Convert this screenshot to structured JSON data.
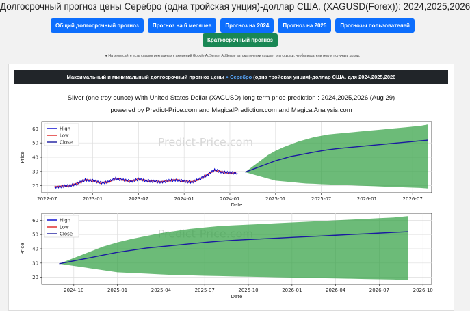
{
  "page": {
    "title": "Долгосрочный прогноз цены Серебро (одна тройская унция)-доллар США. (XAGUSD(Forex)): 2024,2025,2026"
  },
  "nav": {
    "buttons": [
      "Общий долгосрочный прогноз",
      "Прогноз на 6 месяцев",
      "Прогноз на 2024",
      "Прогноз на 2025",
      "Прогнозы пользователей"
    ],
    "short_term": "Краткосрочный прогноз"
  },
  "notice": "На этом сайте есть ссылки рекламных к амерений Google AdSense. AdSense автоматически создает эти ссылки, чтобы издатели могли получать доход.",
  "card": {
    "header_before": "Максимальный и минимальный долгосрочный прогноз цены",
    "header_link": "Серебро",
    "header_after": "(одна тройская унция)-доллар США. для 2024,2025,2026",
    "chart_title": "Silver (one troy ounce) With United States Dollar (XAGUSD) long term price prediction : 2024,2025,2026 (Aug 29)",
    "chart_subtitle": "powered by Predict-Price.com and MagicalPrediction.com and MagicalAnalysis.com"
  },
  "colors": {
    "high": "#0000cc",
    "low": "#dd2222",
    "close": "#1a1aa0",
    "band": "#2e9e3e",
    "primary": "#0d6efd",
    "success": "#198754"
  },
  "chart_data": [
    {
      "type": "line",
      "xlabel": "Date",
      "ylabel": "Price",
      "ylim": [
        15,
        65
      ],
      "yticks": [
        "20",
        "30",
        "40",
        "50",
        "60"
      ],
      "xticks": [
        "2022-07",
        "2023-01",
        "2023-07",
        "2024-01",
        "2024-07",
        "2025-01",
        "2025-07",
        "2026-01",
        "2026-07"
      ],
      "legend": [
        "High",
        "Low",
        "Close"
      ],
      "watermark": "Predict-Price.com",
      "grid": true,
      "history": {
        "dates": [
          "2022-08",
          "2022-09",
          "2022-10",
          "2022-11",
          "2022-12",
          "2023-01",
          "2023-02",
          "2023-03",
          "2023-04",
          "2023-05",
          "2023-06",
          "2023-07",
          "2023-08",
          "2023-09",
          "2023-10",
          "2023-11",
          "2023-12",
          "2024-01",
          "2024-02",
          "2024-03",
          "2024-04",
          "2024-05",
          "2024-06",
          "2024-07",
          "2024-08"
        ],
        "close": [
          19,
          19.5,
          20,
          21.5,
          24,
          23.5,
          22,
          22.5,
          25,
          24,
          23,
          24.5,
          23.5,
          23,
          22.5,
          23.5,
          24,
          23,
          22.5,
          24.5,
          27.5,
          31,
          29.5,
          29,
          29
        ]
      },
      "forecast": {
        "dates": [
          "2024-09",
          "2024-10",
          "2024-11",
          "2024-12",
          "2025-01",
          "2025-02",
          "2025-03",
          "2025-04",
          "2025-05",
          "2025-06",
          "2025-07",
          "2025-08",
          "2025-09",
          "2025-10",
          "2025-11",
          "2025-12",
          "2026-01",
          "2026-02",
          "2026-03",
          "2026-04",
          "2026-05",
          "2026-06",
          "2026-07",
          "2026-08",
          "2026-09"
        ],
        "close": [
          29.5,
          31.5,
          33.5,
          35.5,
          37.5,
          39,
          40.5,
          41.5,
          42.5,
          43.5,
          44.5,
          45.3,
          46,
          46.5,
          47,
          47.5,
          48,
          48.5,
          49,
          49.5,
          50,
          50.5,
          51,
          51.5,
          52
        ],
        "high": [
          29.5,
          33.5,
          37.5,
          41.5,
          44.5,
          47,
          49,
          51,
          52.5,
          54,
          55,
          56,
          56.5,
          57,
          57.5,
          58,
          58.5,
          59,
          59.5,
          60,
          60.5,
          61,
          61.5,
          62,
          63
        ],
        "low": [
          29.5,
          28,
          26.5,
          25,
          23.5,
          23,
          22.5,
          22,
          21.5,
          21.3,
          21,
          20.8,
          20.6,
          20.4,
          20.2,
          20,
          19.8,
          19.6,
          19.4,
          19.2,
          19,
          18.8,
          18.6,
          18.4,
          18
        ]
      }
    },
    {
      "type": "line",
      "xlabel": "Date",
      "ylabel": "Price",
      "ylim": [
        15,
        65
      ],
      "yticks": [
        "20",
        "30",
        "40",
        "50",
        "60"
      ],
      "xticks": [
        "2024-10",
        "2025-01",
        "2025-04",
        "2025-07",
        "2025-10",
        "2026-01",
        "2026-04",
        "2026-07",
        "2026-10"
      ],
      "legend": [
        "High",
        "Low",
        "Close"
      ],
      "watermark": "Predict-Price.com",
      "grid": true
    }
  ]
}
